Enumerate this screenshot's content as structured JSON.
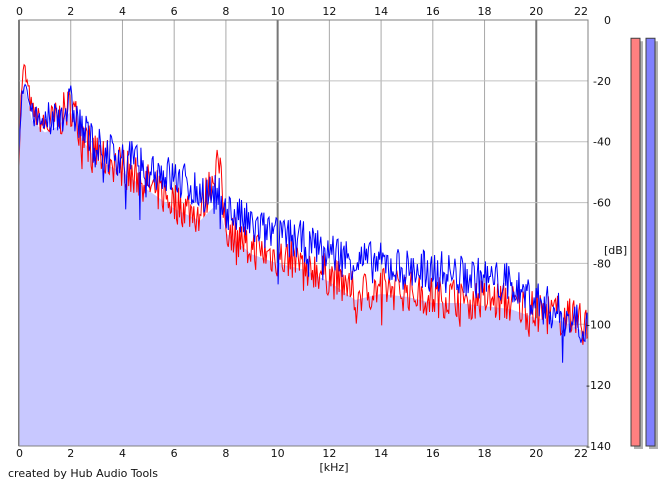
{
  "credit": "created by Hub Audio Tools",
  "chart_data": {
    "type": "line",
    "xlabel": "[kHz]",
    "ylabel": "[dB]",
    "xlim": [
      0,
      22
    ],
    "ylim": [
      -140,
      0
    ],
    "x_ticks": [
      "0",
      "2",
      "4",
      "6",
      "8",
      "10",
      "12",
      "14",
      "16",
      "18",
      "20",
      "22"
    ],
    "y_ticks": [
      "0",
      "-20",
      "-40",
      "-60",
      "-80",
      "-100",
      "-120",
      "-140"
    ],
    "grid": true,
    "fill_color": "#c8c8ff",
    "x": [
      0.0,
      0.1,
      0.2,
      0.5,
      1.0,
      1.5,
      2.0,
      2.5,
      3.0,
      4.0,
      5.0,
      6.0,
      7.0,
      7.7,
      8.0,
      9.0,
      10.0,
      11.0,
      12.0,
      13.0,
      14.0,
      15.0,
      16.0,
      17.0,
      18.0,
      19.0,
      20.0,
      21.0,
      22.0
    ],
    "series": [
      {
        "color": "#ff0000",
        "values": [
          -44,
          -22,
          -16,
          -30,
          -35,
          -33,
          -28,
          -38,
          -44,
          -48,
          -54,
          -60,
          -64,
          -46,
          -68,
          -75,
          -78,
          -80,
          -84,
          -90,
          -88,
          -89,
          -91,
          -91,
          -92,
          -93,
          -96,
          -97,
          -101
        ]
      },
      {
        "color": "#0000ff",
        "values": [
          -44,
          -24,
          -19,
          -31,
          -35,
          -31,
          -28,
          -37,
          -42,
          -45,
          -48,
          -52,
          -56,
          -58,
          -62,
          -68,
          -71,
          -73,
          -76,
          -79,
          -80,
          -82,
          -82,
          -84,
          -85,
          -87,
          -92,
          -97,
          -100
        ]
      }
    ],
    "meters": [
      {
        "color": "#ff8080",
        "level_db": -6
      },
      {
        "color": "#8080ff",
        "level_db": -6
      }
    ]
  }
}
